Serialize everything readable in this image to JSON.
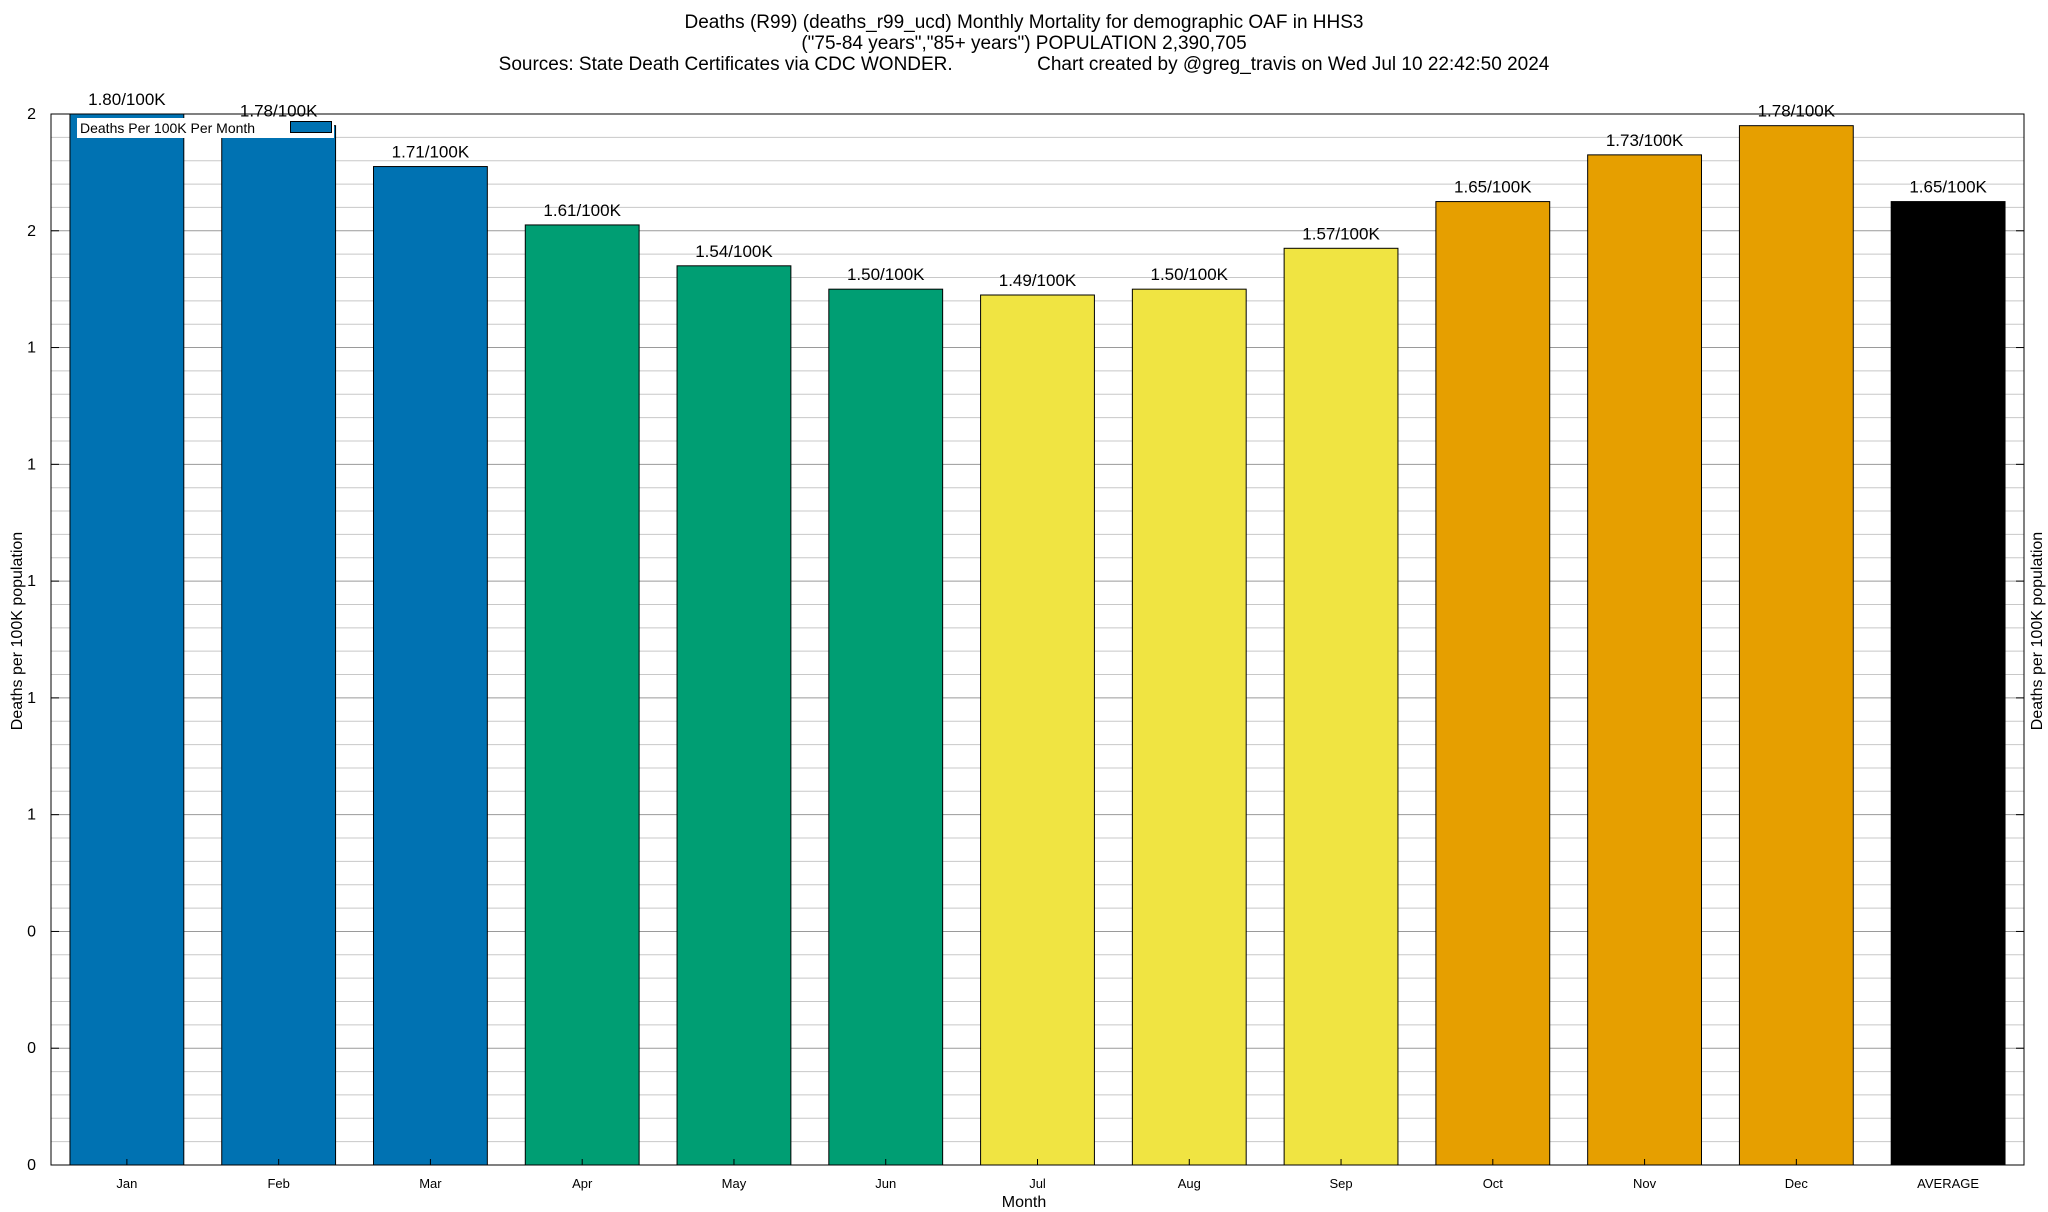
{
  "title": {
    "line1": "Deaths (R99) (deaths_r99_ucd) Monthly Mortality for demographic OAF in HHS3",
    "line2": "(\"75-84 years\",\"85+ years\") POPULATION 2,390,705",
    "line3": "Sources: State Death Certificates via CDC WONDER.                Chart created by @greg_travis on Wed Jul 10 22:42:50 2024"
  },
  "legend": {
    "label": "Deaths Per 100K Per Month"
  },
  "chart_data": {
    "type": "bar",
    "title": "Deaths (R99) (deaths_r99_ucd) Monthly Mortality for demographic OAF in HHS3",
    "xlabel": "Month",
    "ylabel": "Deaths per 100K population",
    "ylabel_right": "Deaths per 100K population",
    "categories": [
      "Jan",
      "Feb",
      "Mar",
      "Apr",
      "May",
      "Jun",
      "Jul",
      "Aug",
      "Sep",
      "Oct",
      "Nov",
      "Dec",
      "AVERAGE"
    ],
    "values": [
      1.8,
      1.78,
      1.71,
      1.61,
      1.54,
      1.5,
      1.49,
      1.5,
      1.57,
      1.65,
      1.73,
      1.78,
      1.65
    ],
    "data_labels": [
      "1.80/100K",
      "1.78/100K",
      "1.71/100K",
      "1.61/100K",
      "1.54/100K",
      "1.50/100K",
      "1.49/100K",
      "1.50/100K",
      "1.57/100K",
      "1.65/100K",
      "1.73/100K",
      "1.78/100K",
      "1.65/100K"
    ],
    "colors": [
      "#0072b2",
      "#0072b2",
      "#0072b2",
      "#009e73",
      "#009e73",
      "#009e73",
      "#f0e442",
      "#f0e442",
      "#f0e442",
      "#e69f00",
      "#e69f00",
      "#e69f00",
      "#000000"
    ],
    "ylim": [
      0,
      1.8
    ],
    "yticks": [
      0,
      0.2,
      0.4,
      0.6,
      0.8,
      1.0,
      1.2,
      1.4,
      1.6,
      1.8
    ],
    "ytick_labels": [
      "0",
      "0",
      "0",
      "1",
      "1",
      "1",
      "1",
      "1",
      "2",
      "2"
    ],
    "minor_grid_step": 0.04,
    "grid": true,
    "legend_position": "top-left"
  }
}
